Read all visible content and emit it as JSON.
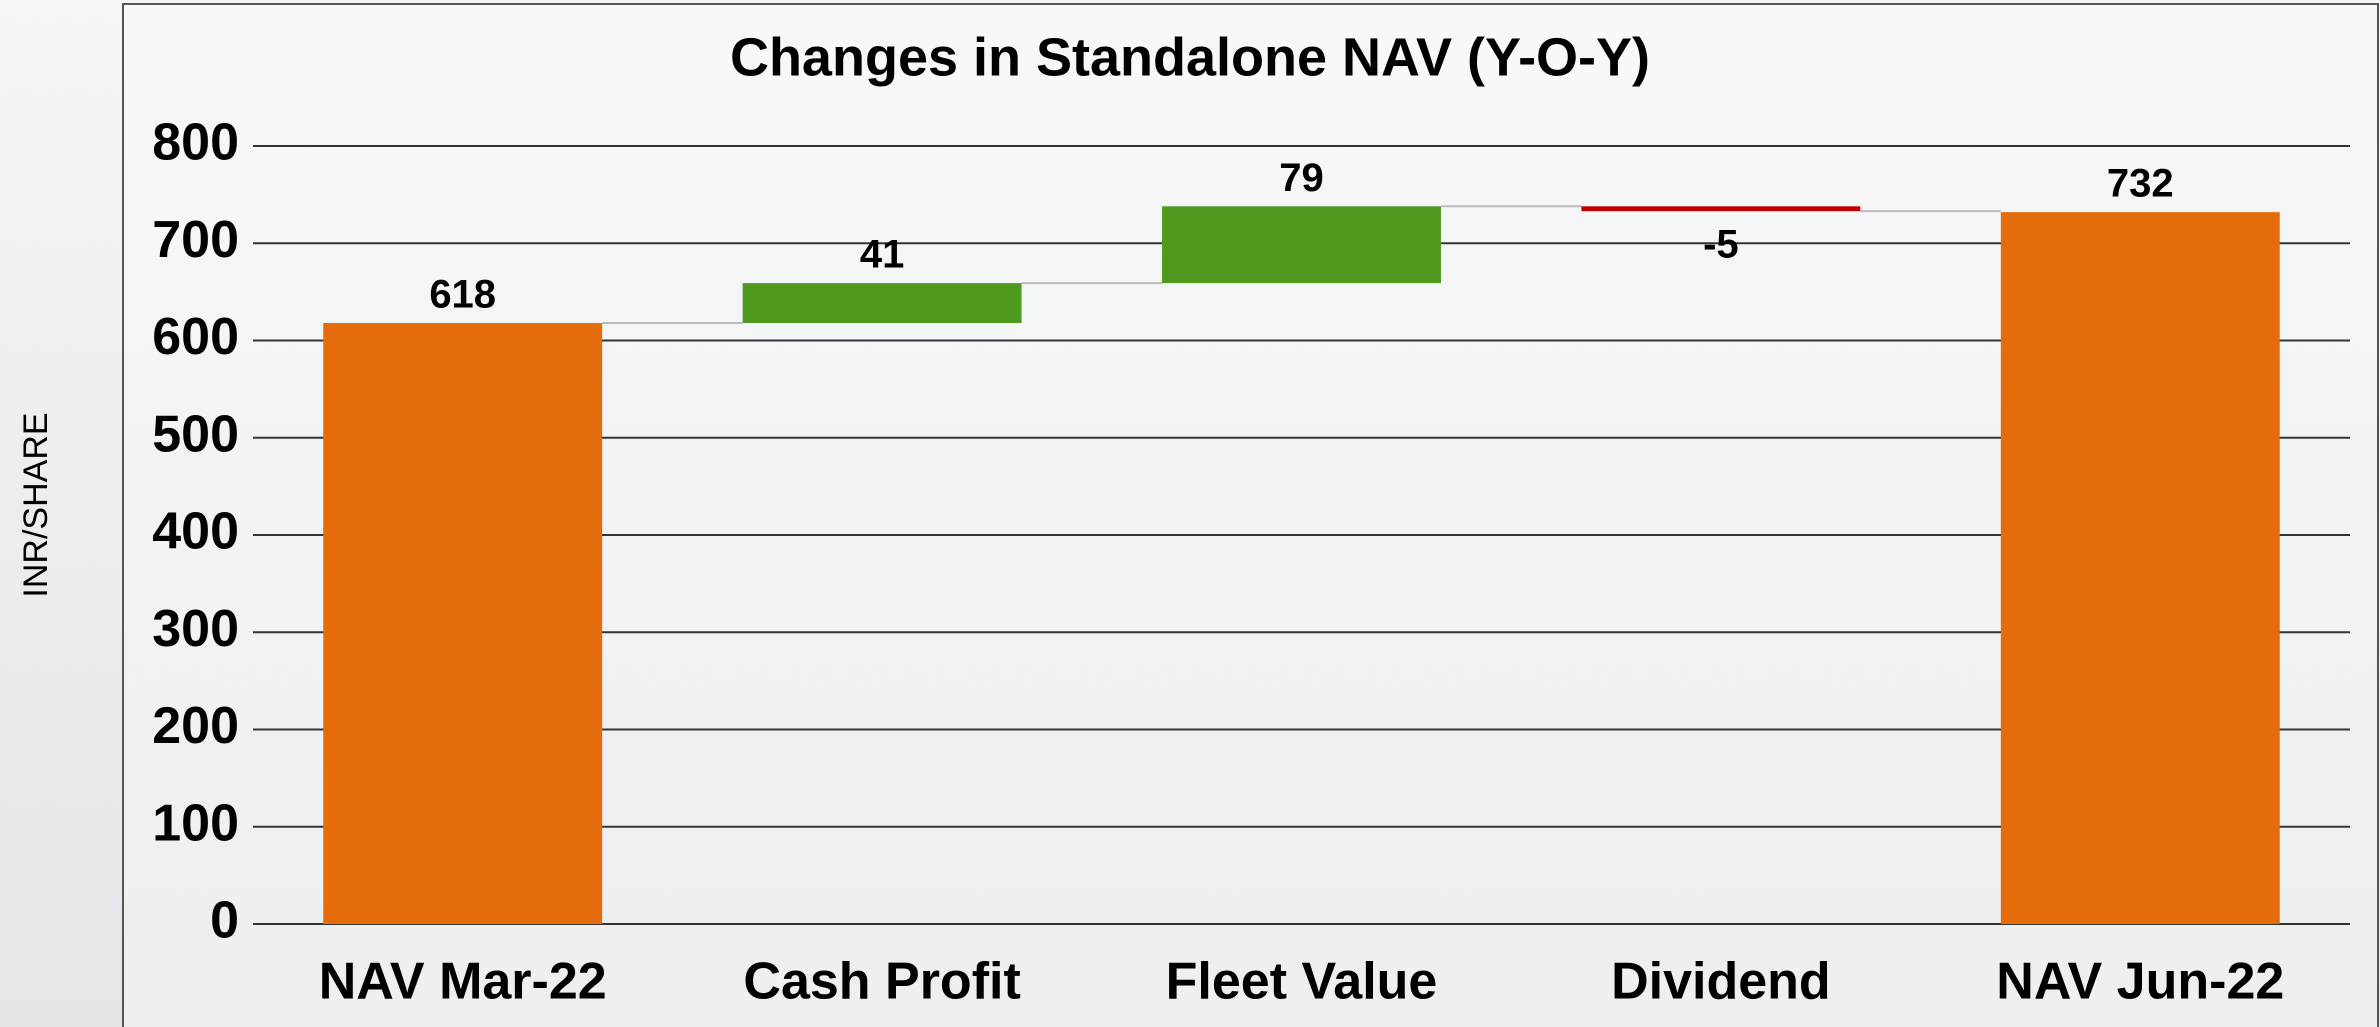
{
  "chart_data": {
    "type": "waterfall",
    "title": "Changes in Standalone NAV (Y-O-Y)",
    "y_label": "INR/SHARE",
    "categories": [
      "NAV Mar-22",
      "Cash Profit",
      "Fleet Value",
      "Dividend",
      "NAV Jun-22"
    ],
    "values": [
      618,
      41,
      79,
      -5,
      732
    ],
    "measure": [
      "total",
      "relative",
      "relative",
      "relative",
      "total"
    ],
    "colors": [
      "#e46c0a",
      "#4e9a1e",
      "#4e9a1e",
      "#c00000",
      "#e46c0a"
    ],
    "ylim": [
      0,
      800
    ],
    "yticks": [
      0,
      100,
      200,
      300,
      400,
      500,
      600,
      700,
      800
    ],
    "grid": true
  }
}
